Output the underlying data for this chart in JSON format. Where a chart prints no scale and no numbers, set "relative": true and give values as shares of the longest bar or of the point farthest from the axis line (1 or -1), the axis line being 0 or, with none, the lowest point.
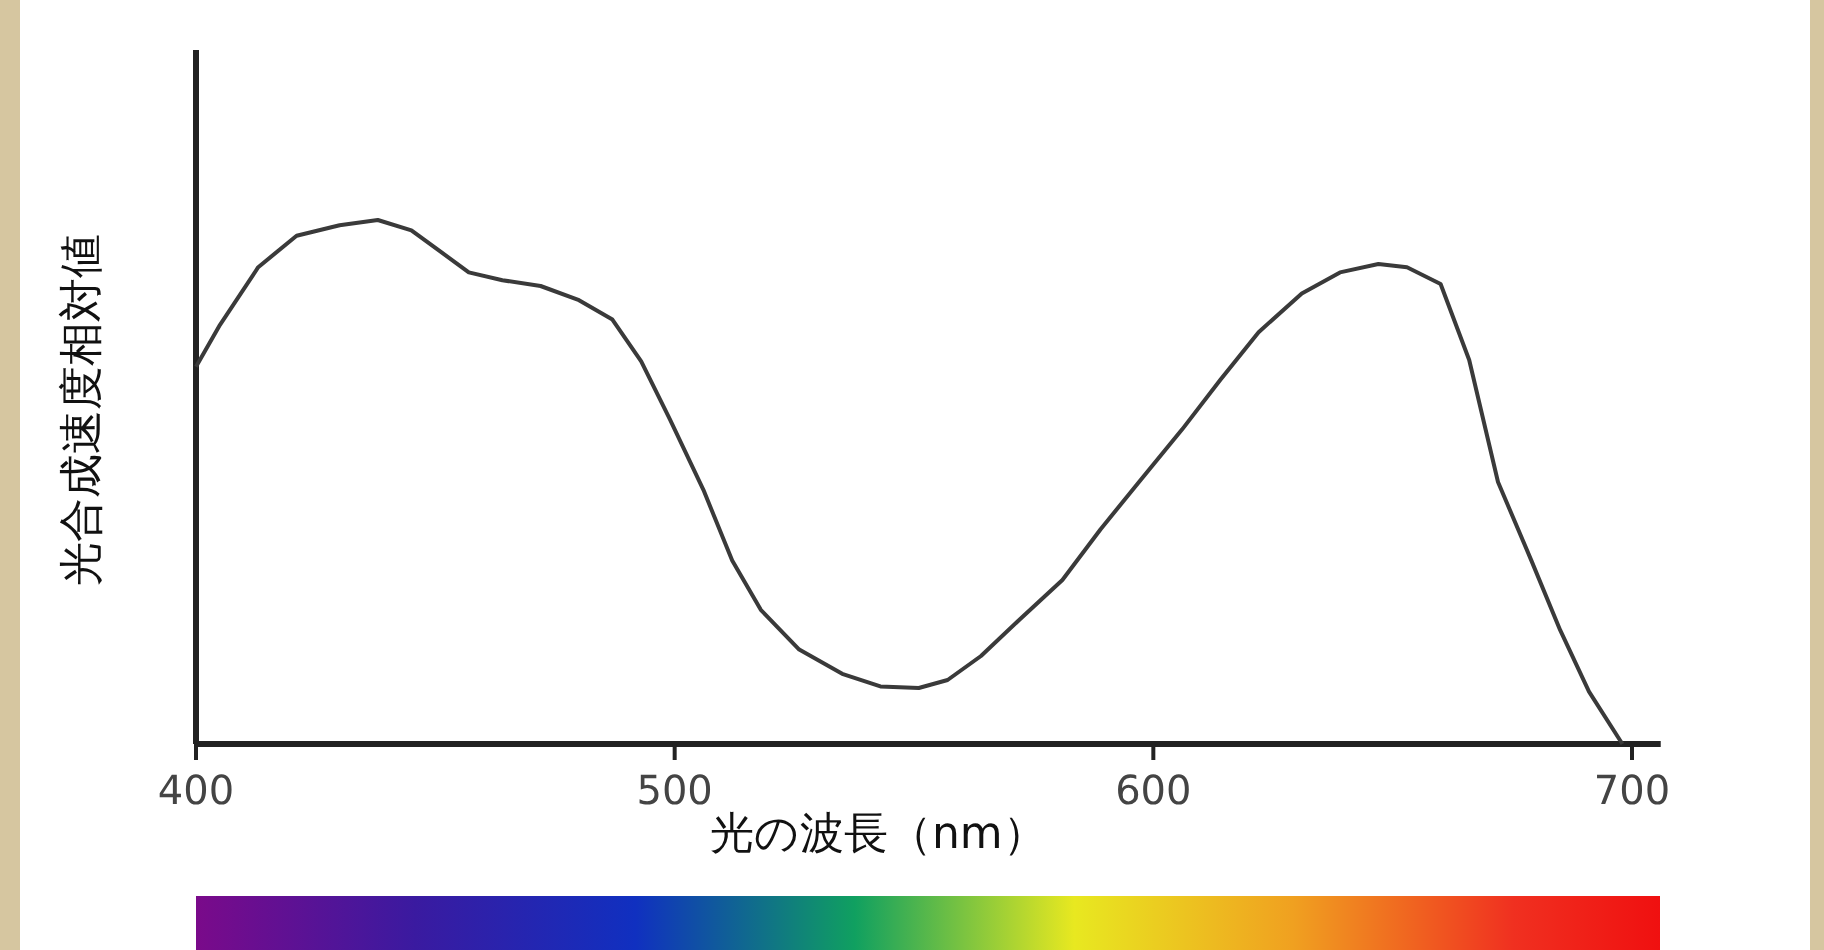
{
  "chart_data": {
    "type": "line",
    "relative": true,
    "xlabel": "光の波長（nm）",
    "ylabel": "光合成速度相対値",
    "color": "#3a3a3a",
    "xlim": [
      400,
      706
    ],
    "xticks": [
      400,
      500,
      600,
      700
    ],
    "x": [
      400,
      405,
      413,
      421,
      430,
      438,
      445,
      451,
      457,
      464,
      472,
      480,
      487,
      493,
      499,
      506,
      512,
      518,
      526,
      535,
      543,
      551,
      557,
      564,
      572,
      581,
      589,
      597,
      606,
      614,
      622,
      631,
      639,
      647,
      653,
      660,
      666,
      672,
      679,
      685,
      691,
      698
    ],
    "values": [
      0.72,
      0.8,
      0.91,
      0.97,
      0.99,
      1,
      0.98,
      0.94,
      0.9,
      0.885,
      0.874,
      0.847,
      0.81,
      0.73,
      0.62,
      0.485,
      0.35,
      0.256,
      0.18,
      0.134,
      0.11,
      0.107,
      0.122,
      0.168,
      0.237,
      0.313,
      0.41,
      0.5,
      0.6,
      0.695,
      0.786,
      0.86,
      0.9,
      0.916,
      0.91,
      0.878,
      0.733,
      0.5,
      0.35,
      0.217,
      0.1,
      0
    ]
  }
}
